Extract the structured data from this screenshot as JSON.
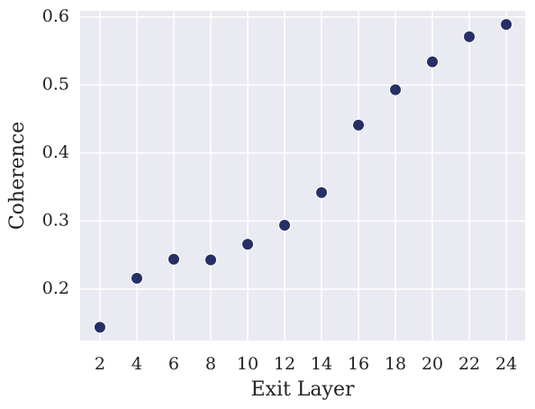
{
  "chart_data": {
    "type": "scatter",
    "x_label": "Exit Layer",
    "y_label": "Coherence",
    "series": [
      {
        "color": "#262f66",
        "x": [
          2,
          4,
          6,
          8,
          10,
          12,
          14,
          16,
          18,
          20,
          22,
          24
        ],
        "values": [
          0.144,
          0.216,
          0.244,
          0.243,
          0.266,
          0.294,
          0.342,
          0.441,
          0.493,
          0.534,
          0.571,
          0.589
        ]
      }
    ],
    "xlim": [
      0.93,
      25.02
    ],
    "ylim": [
      0.1245,
      0.609
    ],
    "xticks": [
      2,
      4,
      6,
      8,
      10,
      12,
      14,
      16,
      18,
      20,
      22,
      24
    ],
    "yticks": [
      0.2,
      0.3,
      0.4,
      0.5,
      0.6
    ],
    "grid": true
  }
}
